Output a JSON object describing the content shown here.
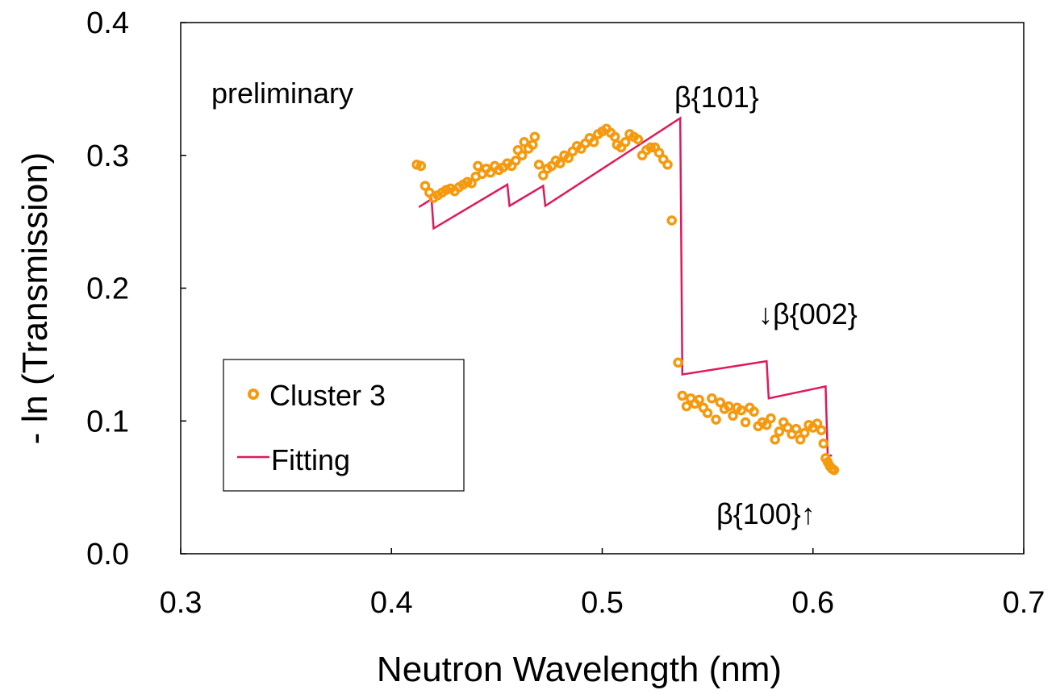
{
  "chart_data": {
    "type": "scatter",
    "xlabel": "Neutron Wavelength (nm)",
    "ylabel": "- ln (Transmission)",
    "xlim": [
      0.3,
      0.7
    ],
    "ylim": [
      0.0,
      0.4
    ],
    "xticks": [
      "0.3",
      "0.4",
      "0.5",
      "0.6",
      "0.7"
    ],
    "yticks": [
      "0.0",
      "0.1",
      "0.2",
      "0.3",
      "0.4"
    ],
    "grid": false,
    "legend_position": "bottom-left",
    "colors": {
      "cluster": "#f59a0f",
      "fitting": "#e0195a"
    },
    "annotations": {
      "preliminary": "preliminary",
      "b101": "β{101}",
      "b002": "↓β{002}",
      "b100": "β{100}↑"
    },
    "series": [
      {
        "name": "Cluster 3",
        "style": "markers",
        "points": [
          [
            0.412,
            0.293
          ],
          [
            0.414,
            0.292
          ],
          [
            0.416,
            0.277
          ],
          [
            0.418,
            0.272
          ],
          [
            0.42,
            0.268
          ],
          [
            0.422,
            0.27
          ],
          [
            0.424,
            0.272
          ],
          [
            0.426,
            0.274
          ],
          [
            0.428,
            0.275
          ],
          [
            0.43,
            0.273
          ],
          [
            0.432,
            0.276
          ],
          [
            0.434,
            0.278
          ],
          [
            0.436,
            0.28
          ],
          [
            0.438,
            0.279
          ],
          [
            0.44,
            0.284
          ],
          [
            0.441,
            0.292
          ],
          [
            0.443,
            0.286
          ],
          [
            0.445,
            0.29
          ],
          [
            0.447,
            0.287
          ],
          [
            0.449,
            0.292
          ],
          [
            0.451,
            0.289
          ],
          [
            0.453,
            0.291
          ],
          [
            0.455,
            0.294
          ],
          [
            0.457,
            0.292
          ],
          [
            0.459,
            0.296
          ],
          [
            0.46,
            0.304
          ],
          [
            0.462,
            0.3
          ],
          [
            0.463,
            0.31
          ],
          [
            0.465,
            0.305
          ],
          [
            0.467,
            0.308
          ],
          [
            0.468,
            0.314
          ],
          [
            0.47,
            0.293
          ],
          [
            0.472,
            0.285
          ],
          [
            0.474,
            0.29
          ],
          [
            0.476,
            0.292
          ],
          [
            0.478,
            0.296
          ],
          [
            0.48,
            0.294
          ],
          [
            0.482,
            0.3
          ],
          [
            0.484,
            0.298
          ],
          [
            0.486,
            0.303
          ],
          [
            0.488,
            0.307
          ],
          [
            0.49,
            0.305
          ],
          [
            0.492,
            0.309
          ],
          [
            0.494,
            0.313
          ],
          [
            0.496,
            0.31
          ],
          [
            0.498,
            0.316
          ],
          [
            0.5,
            0.318
          ],
          [
            0.502,
            0.32
          ],
          [
            0.504,
            0.317
          ],
          [
            0.506,
            0.314
          ],
          [
            0.507,
            0.308
          ],
          [
            0.509,
            0.306
          ],
          [
            0.511,
            0.31
          ],
          [
            0.513,
            0.316
          ],
          [
            0.515,
            0.314
          ],
          [
            0.517,
            0.312
          ],
          [
            0.519,
            0.3
          ],
          [
            0.521,
            0.304
          ],
          [
            0.523,
            0.306
          ],
          [
            0.525,
            0.306
          ],
          [
            0.527,
            0.302
          ],
          [
            0.529,
            0.297
          ],
          [
            0.531,
            0.293
          ],
          [
            0.533,
            0.251
          ],
          [
            0.536,
            0.144
          ],
          [
            0.538,
            0.119
          ],
          [
            0.54,
            0.111
          ],
          [
            0.542,
            0.117
          ],
          [
            0.544,
            0.113
          ],
          [
            0.546,
            0.116
          ],
          [
            0.548,
            0.11
          ],
          [
            0.55,
            0.106
          ],
          [
            0.552,
            0.117
          ],
          [
            0.554,
            0.101
          ],
          [
            0.556,
            0.114
          ],
          [
            0.558,
            0.109
          ],
          [
            0.56,
            0.111
          ],
          [
            0.562,
            0.104
          ],
          [
            0.564,
            0.11
          ],
          [
            0.566,
            0.108
          ],
          [
            0.568,
            0.099
          ],
          [
            0.57,
            0.11
          ],
          [
            0.572,
            0.107
          ],
          [
            0.574,
            0.096
          ],
          [
            0.576,
            0.099
          ],
          [
            0.578,
            0.097
          ],
          [
            0.58,
            0.102
          ],
          [
            0.582,
            0.086
          ],
          [
            0.584,
            0.092
          ],
          [
            0.586,
            0.099
          ],
          [
            0.588,
            0.095
          ],
          [
            0.59,
            0.09
          ],
          [
            0.592,
            0.094
          ],
          [
            0.594,
            0.086
          ],
          [
            0.596,
            0.091
          ],
          [
            0.598,
            0.097
          ],
          [
            0.6,
            0.095
          ],
          [
            0.602,
            0.098
          ],
          [
            0.604,
            0.093
          ],
          [
            0.605,
            0.083
          ],
          [
            0.606,
            0.072
          ],
          [
            0.607,
            0.069
          ],
          [
            0.608,
            0.066
          ],
          [
            0.609,
            0.064
          ],
          [
            0.61,
            0.063
          ]
        ]
      },
      {
        "name": "Fitting",
        "style": "line",
        "points": [
          [
            0.413,
            0.261
          ],
          [
            0.419,
            0.267
          ],
          [
            0.42,
            0.245
          ],
          [
            0.455,
            0.278
          ],
          [
            0.456,
            0.262
          ],
          [
            0.472,
            0.277
          ],
          [
            0.473,
            0.262
          ],
          [
            0.537,
            0.328
          ],
          [
            0.538,
            0.135
          ],
          [
            0.578,
            0.145
          ],
          [
            0.579,
            0.117
          ],
          [
            0.606,
            0.126
          ],
          [
            0.607,
            0.074
          ],
          [
            0.609,
            0.074
          ]
        ]
      }
    ]
  }
}
